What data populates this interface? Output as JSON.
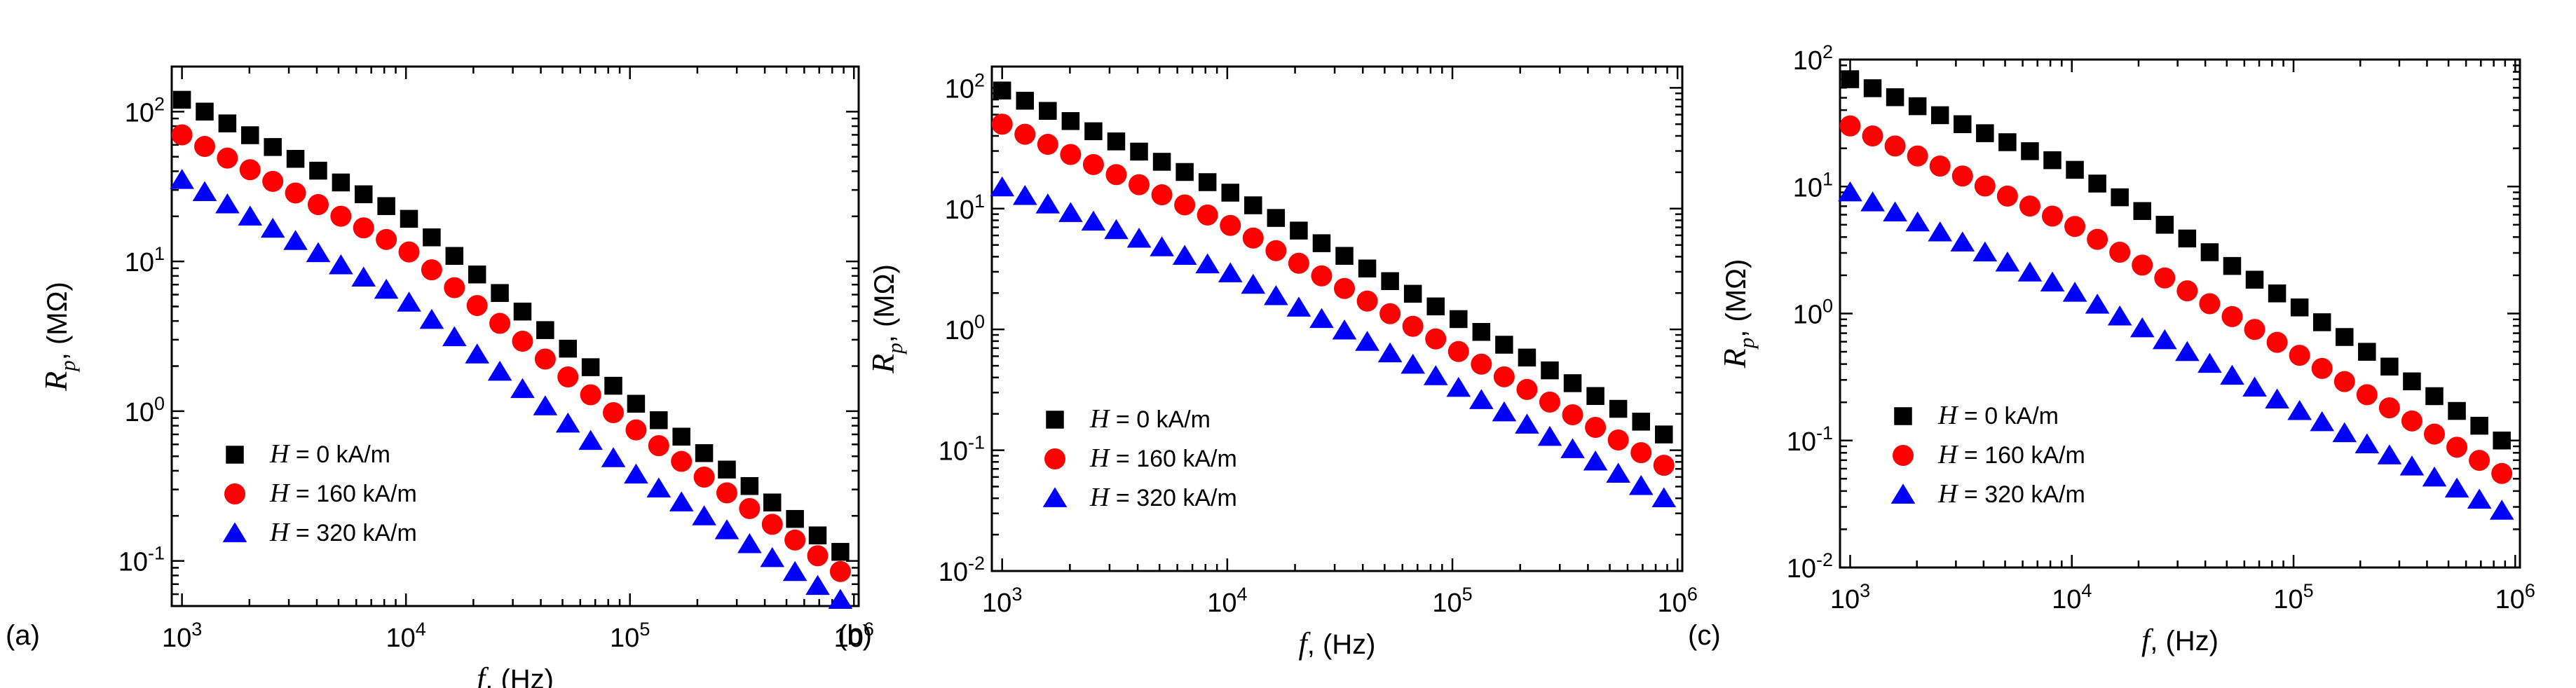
{
  "colors": {
    "series_0": "#000000",
    "series_1": "#ff0000",
    "series_2": "#0000ff",
    "axis": "#000000"
  },
  "chart_data": [
    {
      "type": "scatter",
      "panel_label": "(a)",
      "xscale": "log",
      "yscale": "log",
      "xlim": [
        900,
        1050000
      ],
      "ylim": [
        0.05,
        200
      ],
      "xlabel": {
        "var": "f",
        "unit": ", (Hz)"
      },
      "ylabel": {
        "var": "R",
        "sub": "p",
        "unit": ", (MΩ)"
      },
      "xticks": [
        {
          "value": 1000,
          "base": "10",
          "exp": "3"
        },
        {
          "value": 10000,
          "base": "10",
          "exp": "4"
        },
        {
          "value": 100000,
          "base": "10",
          "exp": "5"
        },
        {
          "value": 1000000,
          "base": "10",
          "exp": "6"
        }
      ],
      "yticks": [
        {
          "value": 0.1,
          "base": "10",
          "exp": "-1"
        },
        {
          "value": 1,
          "base": "10",
          "exp": "0"
        },
        {
          "value": 10,
          "base": "10",
          "exp": "1"
        },
        {
          "value": 100,
          "base": "10",
          "exp": "2"
        }
      ],
      "legend_position": "bottom-left",
      "legend": [
        {
          "var": "H",
          "text": " = 0 kA/m",
          "marker": "square",
          "color": "#000000"
        },
        {
          "var": "H",
          "text": " = 160 kA/m",
          "marker": "circle",
          "color": "#ff0000"
        },
        {
          "var": "H",
          "text": " = 320 kA/m",
          "marker": "triangle",
          "color": "#0000ff"
        }
      ],
      "x_range": [
        1000,
        870000
      ],
      "points_per_series": 30,
      "series": [
        {
          "name": "H = 0 kA/m",
          "marker": "square",
          "color": "#000000",
          "anchors": [
            [
              1000,
              120
            ],
            [
              10000,
              20
            ],
            [
              100000,
              1.2
            ],
            [
              870000,
              0.115
            ]
          ]
        },
        {
          "name": "H = 160 kA/m",
          "marker": "circle",
          "color": "#ff0000",
          "anchors": [
            [
              1000,
              70
            ],
            [
              10000,
              12
            ],
            [
              100000,
              0.8
            ],
            [
              870000,
              0.085
            ]
          ]
        },
        {
          "name": "H = 320 kA/m",
          "marker": "triangle",
          "color": "#0000ff",
          "anchors": [
            [
              1000,
              35
            ],
            [
              10000,
              5.5
            ],
            [
              100000,
              0.4
            ],
            [
              870000,
              0.055
            ]
          ]
        }
      ]
    },
    {
      "type": "scatter",
      "panel_label": "(b)",
      "xscale": "log",
      "yscale": "log",
      "xlim": [
        900,
        1050000
      ],
      "ylim": [
        0.01,
        150
      ],
      "xlabel": {
        "var": "f",
        "unit": ", (Hz)"
      },
      "ylabel": {
        "var": "R",
        "sub": "p",
        "unit": ", (MΩ)"
      },
      "xticks": [
        {
          "value": 1000,
          "base": "10",
          "exp": "3"
        },
        {
          "value": 10000,
          "base": "10",
          "exp": "4"
        },
        {
          "value": 100000,
          "base": "10",
          "exp": "5"
        },
        {
          "value": 1000000,
          "base": "10",
          "exp": "6"
        }
      ],
      "yticks": [
        {
          "value": 0.01,
          "base": "10",
          "exp": "-2"
        },
        {
          "value": 0.1,
          "base": "10",
          "exp": "-1"
        },
        {
          "value": 1,
          "base": "10",
          "exp": "0"
        },
        {
          "value": 10,
          "base": "10",
          "exp": "1"
        },
        {
          "value": 100,
          "base": "10",
          "exp": "2"
        }
      ],
      "legend_position": "bottom-left",
      "legend": [
        {
          "var": "H",
          "text": " = 0 kA/m",
          "marker": "square",
          "color": "#000000"
        },
        {
          "var": "H",
          "text": " = 160 kA/m",
          "marker": "circle",
          "color": "#ff0000"
        },
        {
          "var": "H",
          "text": " = 320 kA/m",
          "marker": "triangle",
          "color": "#0000ff"
        }
      ],
      "x_range": [
        1000,
        870000
      ],
      "points_per_series": 30,
      "series": [
        {
          "name": "H = 0 kA/m",
          "marker": "square",
          "color": "#000000",
          "anchors": [
            [
              1000,
              95
            ],
            [
              10000,
              14
            ],
            [
              100000,
              1.3
            ],
            [
              870000,
              0.135
            ]
          ]
        },
        {
          "name": "H = 160 kA/m",
          "marker": "circle",
          "color": "#ff0000",
          "anchors": [
            [
              1000,
              50
            ],
            [
              10000,
              7.5
            ],
            [
              100000,
              0.7
            ],
            [
              870000,
              0.075
            ]
          ]
        },
        {
          "name": "H = 320 kA/m",
          "marker": "triangle",
          "color": "#0000ff",
          "anchors": [
            [
              1000,
              15
            ],
            [
              10000,
              3
            ],
            [
              100000,
              0.35
            ],
            [
              870000,
              0.04
            ]
          ]
        }
      ]
    },
    {
      "type": "scatter",
      "panel_label": "(c)",
      "xscale": "log",
      "yscale": "log",
      "xlim": [
        900,
        1050000
      ],
      "ylim": [
        0.01,
        100
      ],
      "xlabel": {
        "var": "f",
        "unit": ", (Hz)"
      },
      "ylabel": {
        "var": "R",
        "sub": "p",
        "unit": ", (MΩ)"
      },
      "xticks": [
        {
          "value": 1000,
          "base": "10",
          "exp": "3"
        },
        {
          "value": 10000,
          "base": "10",
          "exp": "4"
        },
        {
          "value": 100000,
          "base": "10",
          "exp": "5"
        },
        {
          "value": 1000000,
          "base": "10",
          "exp": "6"
        }
      ],
      "yticks": [
        {
          "value": 0.01,
          "base": "10",
          "exp": "-2"
        },
        {
          "value": 0.1,
          "base": "10",
          "exp": "-1"
        },
        {
          "value": 1,
          "base": "10",
          "exp": "0"
        },
        {
          "value": 10,
          "base": "10",
          "exp": "1"
        },
        {
          "value": 100,
          "base": "10",
          "exp": "2"
        }
      ],
      "legend_position": "bottom-left",
      "legend": [
        {
          "var": "H",
          "text": " = 0 kA/m",
          "marker": "square",
          "color": "#000000"
        },
        {
          "var": "H",
          "text": " = 160 kA/m",
          "marker": "circle",
          "color": "#ff0000"
        },
        {
          "var": "H",
          "text": " = 320 kA/m",
          "marker": "triangle",
          "color": "#0000ff"
        }
      ],
      "x_range": [
        1000,
        870000
      ],
      "points_per_series": 30,
      "series": [
        {
          "name": "H = 0 kA/m",
          "marker": "square",
          "color": "#000000",
          "anchors": [
            [
              1000,
              70
            ],
            [
              10000,
              14
            ],
            [
              100000,
              1.2
            ],
            [
              870000,
              0.1
            ]
          ]
        },
        {
          "name": "H = 160 kA/m",
          "marker": "circle",
          "color": "#ff0000",
          "anchors": [
            [
              1000,
              30
            ],
            [
              10000,
              5
            ],
            [
              100000,
              0.5
            ],
            [
              870000,
              0.055
            ]
          ]
        },
        {
          "name": "H = 320 kA/m",
          "marker": "triangle",
          "color": "#0000ff",
          "anchors": [
            [
              1000,
              9
            ],
            [
              10000,
              1.5
            ],
            [
              100000,
              0.18
            ],
            [
              870000,
              0.028
            ]
          ]
        }
      ]
    }
  ]
}
